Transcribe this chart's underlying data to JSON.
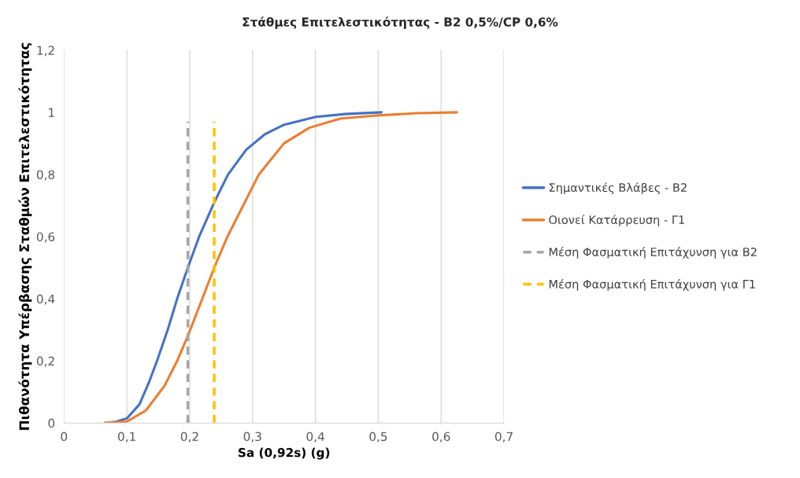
{
  "chart_data": {
    "type": "line",
    "title": "Στάθμες Επιτελεστικότητας - Β2 0,5%/CP 0,6%",
    "xlabel": "Sa (0,92s) (g)",
    "ylabel": "Πιθανότητα Υπέρβασης Σταθμών Επιτελεστικότητας",
    "series": [
      {
        "name": "Σημαντικές Βλάβες - Β2",
        "color": "#4472c4",
        "x": [
          0.065,
          0.08,
          0.1,
          0.12,
          0.135,
          0.148,
          0.165,
          0.18,
          0.197,
          0.215,
          0.239,
          0.261,
          0.29,
          0.32,
          0.35,
          0.4,
          0.45,
          0.505
        ],
        "values": [
          0,
          0.003,
          0.015,
          0.06,
          0.13,
          0.2,
          0.3,
          0.4,
          0.5,
          0.6,
          0.71,
          0.8,
          0.88,
          0.93,
          0.96,
          0.985,
          0.995,
          1
        ]
      },
      {
        "name": "Οιονεί Κατάρρευση - Γ1",
        "color": "#ed7d31",
        "x": [
          0.065,
          0.1,
          0.13,
          0.16,
          0.18,
          0.197,
          0.22,
          0.239,
          0.26,
          0.285,
          0.31,
          0.35,
          0.39,
          0.44,
          0.5,
          0.56,
          0.625
        ],
        "values": [
          0,
          0.005,
          0.04,
          0.12,
          0.2,
          0.28,
          0.4,
          0.5,
          0.6,
          0.7,
          0.8,
          0.9,
          0.95,
          0.98,
          0.99,
          0.997,
          1
        ]
      },
      {
        "name": "Μέση Φασματική Επιτάχυνση για Β2",
        "color": "#a5a5a5",
        "line_style": "dashed",
        "x": [
          0.197,
          0.197
        ],
        "values": [
          0,
          0.97
        ]
      },
      {
        "name": "Μέση Φασματική Επιτάχυνση για Γ1",
        "color": "#ffc000",
        "line_style": "dashed",
        "x": [
          0.239,
          0.239
        ],
        "values": [
          0,
          0.97
        ]
      }
    ],
    "xlim": [
      0,
      0.7
    ],
    "xticks": [
      0,
      {
        "value": 0.1,
        "label": "0,1"
      },
      {
        "value": 0.2,
        "label": "0,2"
      },
      {
        "value": 0.3,
        "label": "0,3"
      },
      {
        "value": 0.4,
        "label": "0,4"
      },
      {
        "value": 0.5,
        "label": "0,5"
      },
      {
        "value": 0.6,
        "label": "0,6"
      },
      {
        "value": 0.7,
        "label": "0,7"
      }
    ],
    "ylim": [
      0,
      1.2
    ],
    "yticks": [
      0,
      {
        "value": 0.2,
        "label": "0,2"
      },
      {
        "value": 0.4,
        "label": "0,4"
      },
      {
        "value": 0.6,
        "label": "0,6"
      },
      {
        "value": 0.8,
        "label": "0,8"
      },
      1,
      {
        "value": 1.2,
        "label": "1,2"
      }
    ],
    "grid": "x",
    "legend": "right",
    "marker": "none",
    "line_style": "solid"
  }
}
